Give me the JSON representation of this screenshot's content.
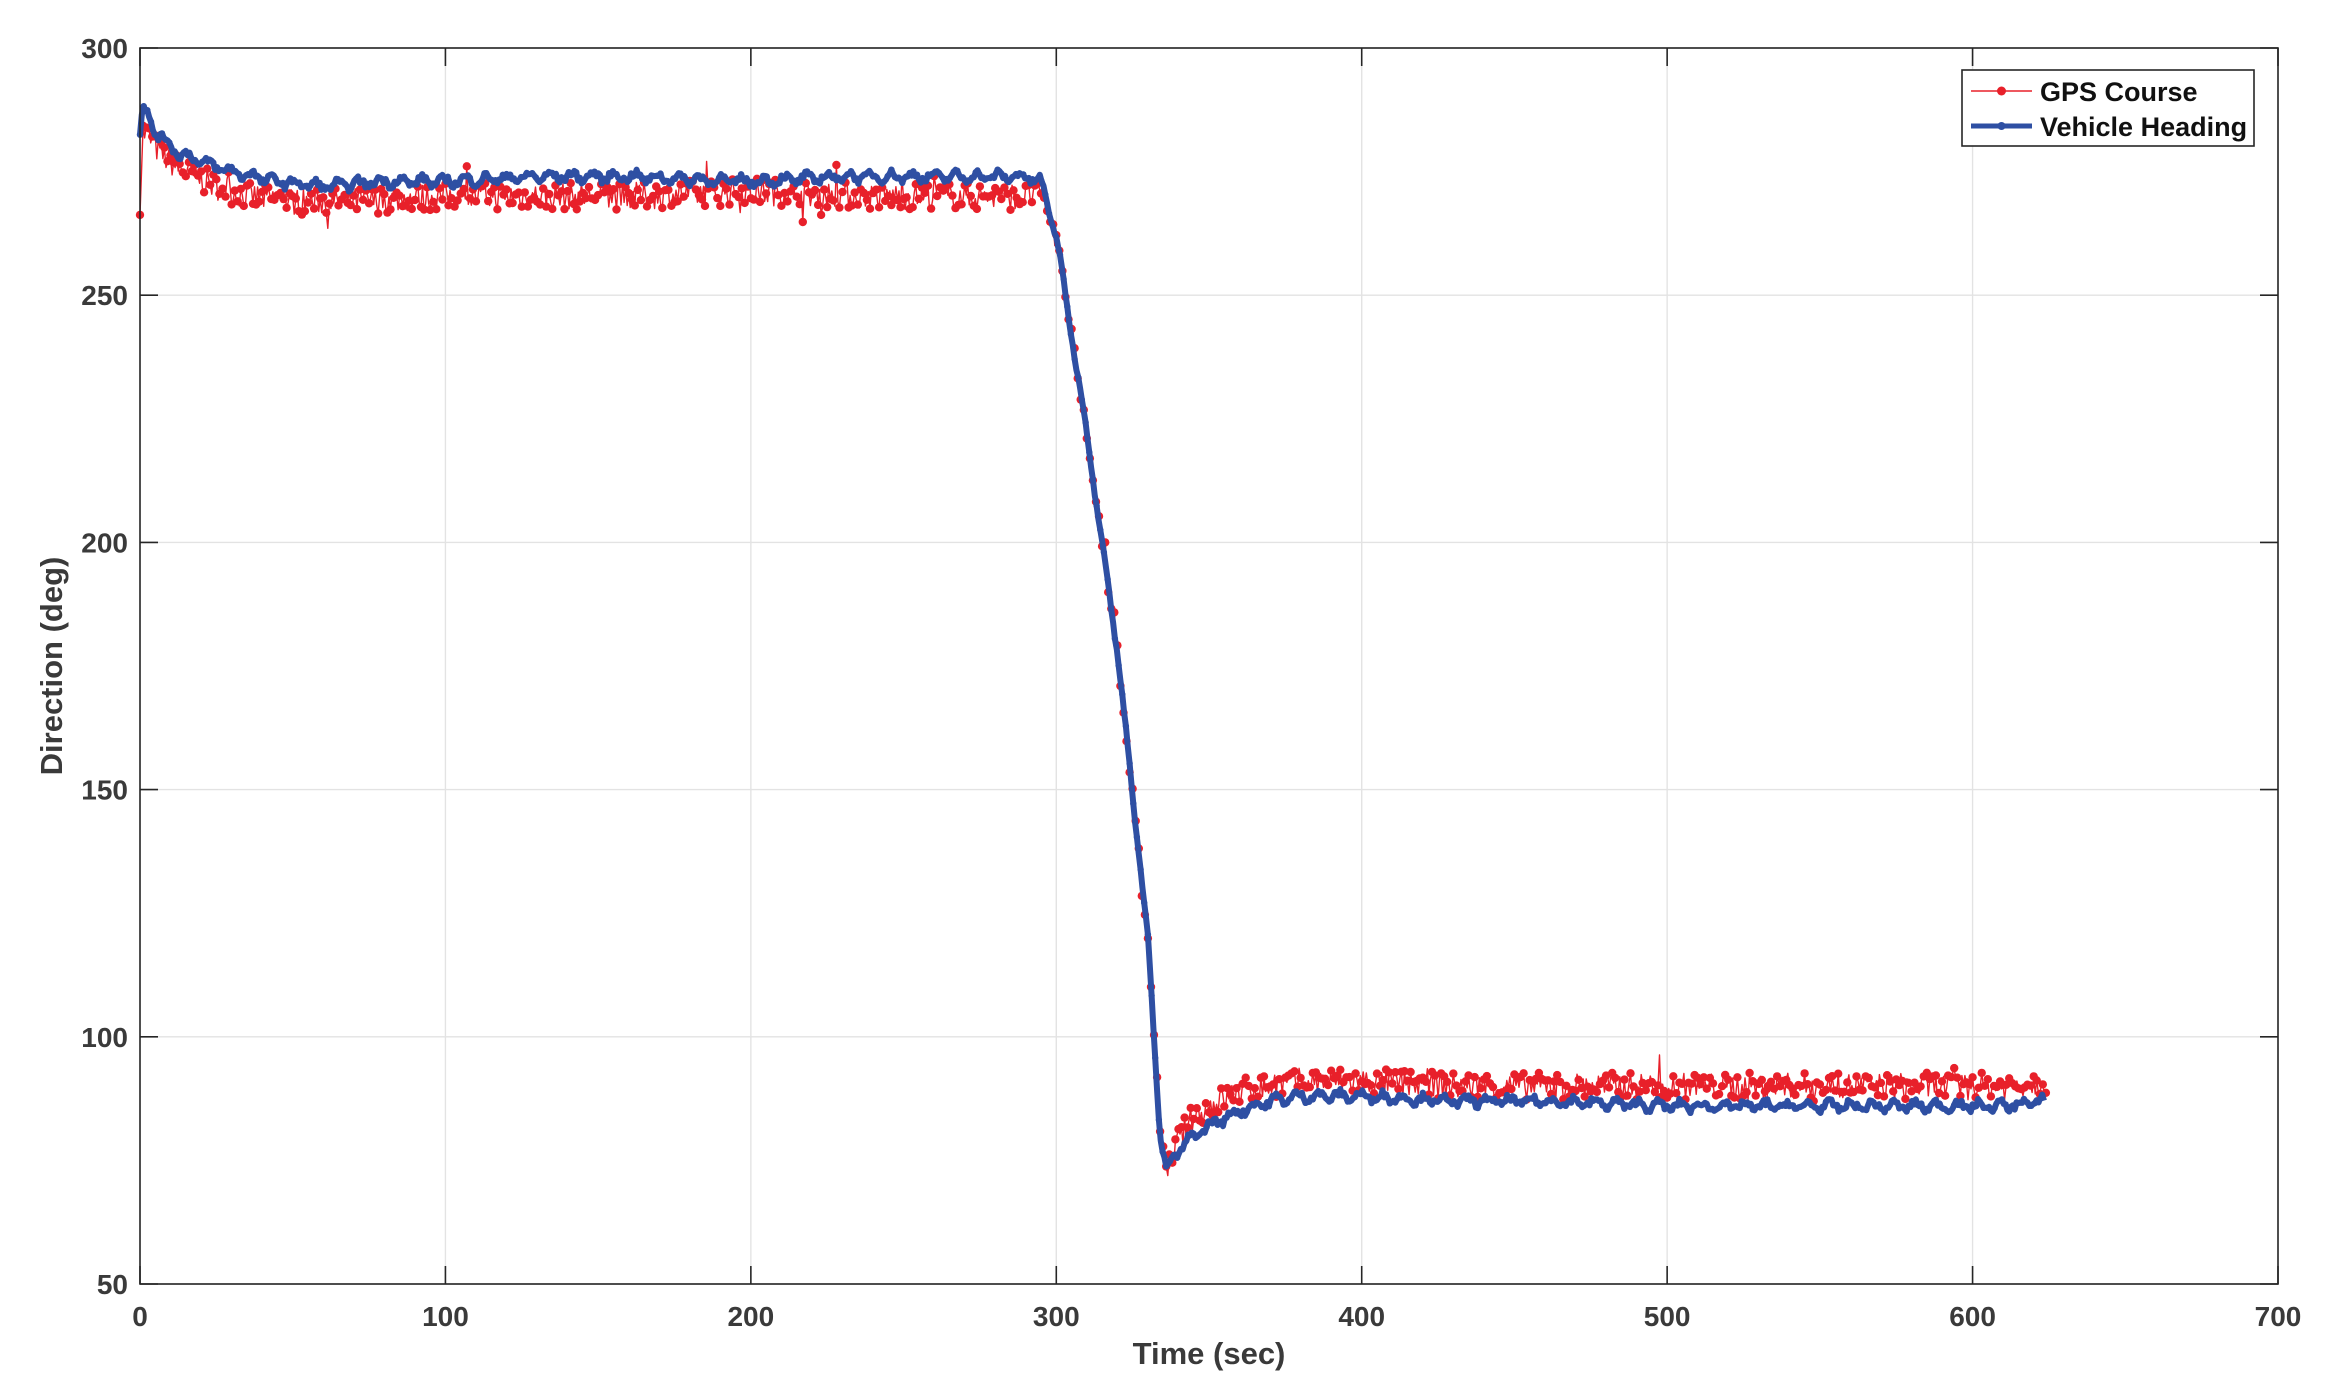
{
  "chart_data": {
    "type": "line",
    "title": "",
    "xlabel": "Time (sec)",
    "ylabel": "Direction (deg)",
    "xlim": [
      0,
      700
    ],
    "ylim": [
      50,
      300
    ],
    "xticks": [
      0,
      100,
      200,
      300,
      400,
      500,
      600,
      700
    ],
    "yticks": [
      50,
      100,
      150,
      200,
      250,
      300
    ],
    "grid": true,
    "legend_position": "top-right",
    "series": [
      {
        "name": "GPS Course",
        "color": "#e8202a",
        "marker": "dot",
        "x": [
          0,
          1,
          3,
          5,
          8,
          12,
          18,
          25,
          35,
          50,
          70,
          100,
          130,
          160,
          200,
          240,
          270,
          290,
          295,
          300,
          310,
          320,
          330,
          334,
          336,
          340,
          345,
          350,
          360,
          370,
          380,
          400,
          430,
          460,
          500,
          540,
          580,
          610,
          624
        ],
        "y": [
          269,
          283,
          282,
          280,
          278,
          276,
          274,
          272,
          270,
          269,
          269,
          270,
          270,
          270,
          271,
          270,
          270,
          270,
          271,
          262,
          222,
          178,
          120,
          82,
          72,
          79,
          84,
          86,
          89,
          90,
          91,
          91,
          90,
          90,
          90,
          90,
          90,
          90,
          91
        ]
      },
      {
        "name": "Vehicle Heading",
        "color": "#2e4fa3",
        "marker": "dot",
        "x": [
          0,
          1,
          2,
          4,
          7,
          12,
          20,
          30,
          45,
          60,
          80,
          100,
          130,
          160,
          200,
          230,
          260,
          290,
          295,
          300,
          310,
          320,
          330,
          334,
          336,
          340,
          345,
          350,
          360,
          370,
          380,
          400,
          430,
          460,
          500,
          540,
          580,
          610,
          624
        ],
        "y": [
          283,
          288,
          287,
          284,
          282,
          279,
          277,
          275,
          273,
          272,
          273,
          273,
          274,
          274,
          273,
          274,
          274,
          274,
          273,
          262,
          222,
          178,
          120,
          80,
          73,
          77,
          80,
          82,
          85,
          87,
          88,
          88,
          87,
          87,
          86,
          86,
          86,
          86,
          87
        ]
      }
    ]
  }
}
